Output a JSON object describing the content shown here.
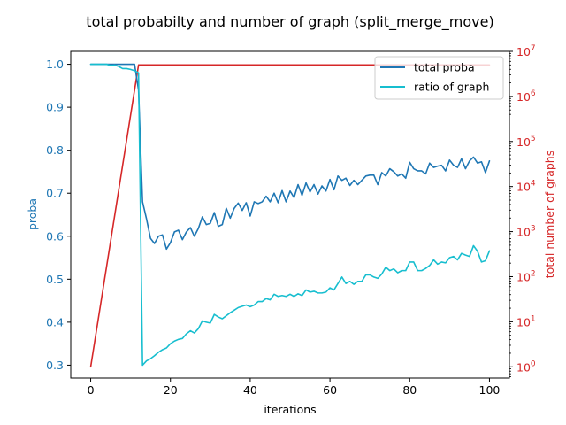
{
  "chart_data": {
    "type": "line",
    "title": "total probabilty and number of graph (split_merge_move)",
    "xlabel": "iterations",
    "ylabel": "proba",
    "y2label": "total number of graphs",
    "xlim": [
      -5,
      105
    ],
    "ylim": [
      0.27,
      1.03
    ],
    "y2lim_log10": [
      -0.25,
      7.0
    ],
    "y2scale": "log",
    "x_ticks": [
      "0",
      "20",
      "40",
      "60",
      "80",
      "100"
    ],
    "y_ticks": [
      "0.3",
      "0.4",
      "0.5",
      "0.6",
      "0.7",
      "0.8",
      "0.9",
      "1.0"
    ],
    "y2_ticks": [
      {
        "exp": 0,
        "label": "10",
        "sup": "0"
      },
      {
        "exp": 1,
        "label": "10",
        "sup": "1"
      },
      {
        "exp": 2,
        "label": "10",
        "sup": "2"
      },
      {
        "exp": 3,
        "label": "10",
        "sup": "3"
      },
      {
        "exp": 4,
        "label": "10",
        "sup": "4"
      },
      {
        "exp": 5,
        "label": "10",
        "sup": "5"
      },
      {
        "exp": 6,
        "label": "10",
        "sup": "6"
      },
      {
        "exp": 7,
        "label": "10",
        "sup": "7"
      }
    ],
    "legend": {
      "position": "top-right"
    },
    "colors": {
      "left_axis": "#1f77b4",
      "right_axis": "#d62728"
    },
    "series": [
      {
        "name": "total proba",
        "axis": "left",
        "color": "#1f77b4",
        "x": [
          0,
          1,
          2,
          3,
          4,
          5,
          6,
          7,
          8,
          9,
          10,
          11,
          12,
          13,
          14,
          15,
          16,
          17,
          18,
          19,
          20,
          21,
          22,
          23,
          24,
          25,
          26,
          27,
          28,
          29,
          30,
          31,
          32,
          33,
          34,
          35,
          36,
          37,
          38,
          39,
          40,
          41,
          42,
          43,
          44,
          45,
          46,
          47,
          48,
          49,
          50,
          51,
          52,
          53,
          54,
          55,
          56,
          57,
          58,
          59,
          60,
          61,
          62,
          63,
          64,
          65,
          66,
          67,
          68,
          69,
          70,
          71,
          72,
          73,
          74,
          75,
          76,
          77,
          78,
          79,
          80,
          81,
          82,
          83,
          84,
          85,
          86,
          87,
          88,
          89,
          90,
          91,
          92,
          93,
          94,
          95,
          96,
          97,
          98,
          99,
          100
        ],
        "y": [
          1.0,
          1.0,
          1.0,
          1.0,
          1.0,
          1.0,
          1.0,
          1.0,
          1.0,
          1.0,
          1.0,
          1.0,
          0.94,
          0.68,
          0.64,
          0.595,
          0.583,
          0.6,
          0.603,
          0.57,
          0.585,
          0.61,
          0.614,
          0.592,
          0.61,
          0.62,
          0.6,
          0.618,
          0.645,
          0.627,
          0.63,
          0.655,
          0.623,
          0.627,
          0.665,
          0.642,
          0.665,
          0.677,
          0.66,
          0.678,
          0.647,
          0.68,
          0.676,
          0.68,
          0.693,
          0.68,
          0.7,
          0.678,
          0.706,
          0.68,
          0.705,
          0.69,
          0.72,
          0.695,
          0.724,
          0.703,
          0.72,
          0.698,
          0.717,
          0.705,
          0.732,
          0.708,
          0.74,
          0.73,
          0.735,
          0.718,
          0.73,
          0.72,
          0.73,
          0.74,
          0.742,
          0.742,
          0.72,
          0.748,
          0.74,
          0.757,
          0.75,
          0.74,
          0.745,
          0.735,
          0.772,
          0.757,
          0.752,
          0.752,
          0.745,
          0.77,
          0.76,
          0.763,
          0.765,
          0.752,
          0.777,
          0.765,
          0.76,
          0.78,
          0.757,
          0.775,
          0.784,
          0.77,
          0.773,
          0.748,
          0.775
        ]
      },
      {
        "name": "ratio of graph",
        "axis": "left",
        "color": "#17becf",
        "x": [
          0,
          1,
          2,
          3,
          4,
          5,
          6,
          7,
          8,
          9,
          10,
          11,
          12,
          13,
          14,
          15,
          16,
          17,
          18,
          19,
          20,
          21,
          22,
          23,
          24,
          25,
          26,
          27,
          28,
          29,
          30,
          31,
          32,
          33,
          34,
          35,
          36,
          37,
          38,
          39,
          40,
          41,
          42,
          43,
          44,
          45,
          46,
          47,
          48,
          49,
          50,
          51,
          52,
          53,
          54,
          55,
          56,
          57,
          58,
          59,
          60,
          61,
          62,
          63,
          64,
          65,
          66,
          67,
          68,
          69,
          70,
          71,
          72,
          73,
          74,
          75,
          76,
          77,
          78,
          79,
          80,
          81,
          82,
          83,
          84,
          85,
          86,
          87,
          88,
          89,
          90,
          91,
          92,
          93,
          94,
          95,
          96,
          97,
          98,
          99,
          100
        ],
        "y": [
          1.0,
          1.0,
          1.0,
          1.0,
          1.0,
          0.997,
          0.998,
          0.995,
          0.99,
          0.99,
          0.988,
          0.985,
          0.98,
          0.3,
          0.31,
          0.315,
          0.322,
          0.33,
          0.336,
          0.34,
          0.35,
          0.356,
          0.36,
          0.362,
          0.373,
          0.38,
          0.375,
          0.385,
          0.403,
          0.4,
          0.398,
          0.418,
          0.412,
          0.408,
          0.415,
          0.422,
          0.428,
          0.434,
          0.437,
          0.44,
          0.436,
          0.44,
          0.448,
          0.448,
          0.455,
          0.452,
          0.465,
          0.46,
          0.462,
          0.46,
          0.465,
          0.46,
          0.466,
          0.462,
          0.475,
          0.47,
          0.472,
          0.468,
          0.468,
          0.47,
          0.48,
          0.475,
          0.49,
          0.505,
          0.49,
          0.495,
          0.488,
          0.495,
          0.495,
          0.51,
          0.51,
          0.505,
          0.502,
          0.512,
          0.528,
          0.52,
          0.524,
          0.515,
          0.52,
          0.52,
          0.54,
          0.54,
          0.52,
          0.52,
          0.525,
          0.532,
          0.545,
          0.535,
          0.54,
          0.538,
          0.55,
          0.553,
          0.545,
          0.56,
          0.556,
          0.553,
          0.578,
          0.565,
          0.54,
          0.543,
          0.566
        ]
      },
      {
        "name": "",
        "axis": "right",
        "color": "#d62728",
        "x": [
          0,
          12,
          100
        ],
        "y": [
          1,
          5000000,
          5000000
        ]
      }
    ]
  }
}
